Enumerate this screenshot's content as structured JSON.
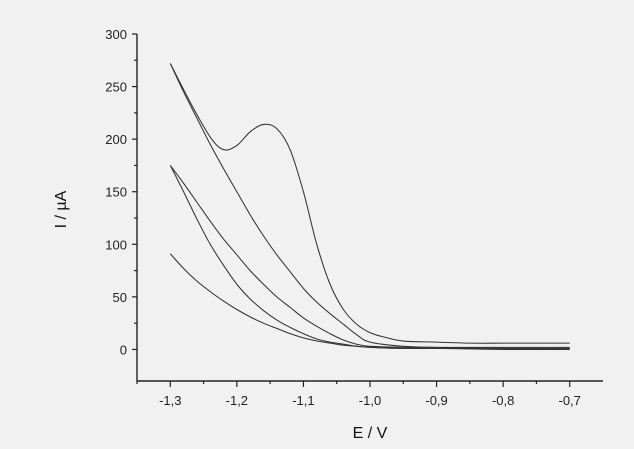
{
  "chart_data": {
    "type": "line",
    "xlabel": "E / V",
    "ylabel": "I / µA",
    "xlim": [
      -1.35,
      -0.65
    ],
    "ylim": [
      -30,
      300
    ],
    "x_ticks": [
      -1.3,
      -1.2,
      -1.1,
      -1.0,
      -0.9,
      -0.8,
      -0.7
    ],
    "x_tick_labels": [
      "-1,3",
      "-1,2",
      "-1,1",
      "-1,0",
      "-0,9",
      "-0,8",
      "-0,7"
    ],
    "y_ticks": [
      0,
      50,
      100,
      150,
      200,
      250,
      300
    ],
    "y_tick_labels": [
      "0",
      "50",
      "100",
      "150",
      "200",
      "250",
      "300"
    ],
    "grid": false,
    "series": [
      {
        "x": [
          -1.3,
          -1.27,
          -1.24,
          -1.22,
          -1.2,
          -1.18,
          -1.16,
          -1.14,
          -1.12,
          -1.1,
          -1.08,
          -1.06,
          -1.04,
          -1.02,
          -1.0,
          -0.98,
          -0.95,
          -0.9,
          -0.85,
          -0.8,
          -0.75,
          -0.7
        ],
        "y": [
          272,
          235,
          202,
          190,
          194,
          207,
          214,
          210,
          190,
          150,
          100,
          62,
          38,
          24,
          16,
          12,
          8,
          7,
          6,
          6,
          6,
          6
        ]
      },
      {
        "x": [
          -1.3,
          -1.28,
          -1.26,
          -1.24,
          -1.22,
          -1.2,
          -1.18,
          -1.16,
          -1.14,
          -1.12,
          -1.1,
          -1.08,
          -1.06,
          -1.04,
          -1.02,
          -1.0,
          -0.95,
          -0.9,
          -0.8,
          -0.7
        ],
        "y": [
          272,
          245,
          220,
          195,
          172,
          150,
          128,
          108,
          90,
          74,
          58,
          45,
          34,
          24,
          14,
          7,
          3,
          2,
          1,
          1
        ]
      },
      {
        "x": [
          -1.3,
          -1.28,
          -1.26,
          -1.24,
          -1.22,
          -1.2,
          -1.18,
          -1.16,
          -1.14,
          -1.12,
          -1.1,
          -1.08,
          -1.06,
          -1.04,
          -1.02,
          -1.0,
          -0.95,
          -0.9,
          -0.8,
          -0.7
        ],
        "y": [
          175,
          158,
          140,
          122,
          105,
          90,
          75,
          62,
          50,
          40,
          30,
          22,
          15,
          9,
          5,
          3,
          2,
          2,
          2,
          2
        ]
      },
      {
        "x": [
          -1.3,
          -1.28,
          -1.26,
          -1.24,
          -1.22,
          -1.2,
          -1.18,
          -1.16,
          -1.14,
          -1.12,
          -1.1,
          -1.08,
          -1.06,
          -1.04,
          -1.02,
          -1.0,
          -0.95,
          -0.9,
          -0.8,
          -0.7
        ],
        "y": [
          175,
          150,
          124,
          100,
          80,
          62,
          48,
          37,
          28,
          21,
          15,
          10,
          7,
          5,
          3,
          2,
          1,
          1,
          1,
          1
        ]
      },
      {
        "x": [
          -1.3,
          -1.28,
          -1.26,
          -1.24,
          -1.22,
          -1.2,
          -1.18,
          -1.16,
          -1.14,
          -1.12,
          -1.1,
          -1.08,
          -1.06,
          -1.04,
          -1.02,
          -1.0,
          -0.95,
          -0.9,
          -0.8,
          -0.7
        ],
        "y": [
          91,
          77,
          65,
          55,
          46,
          38,
          31,
          25,
          20,
          15,
          11,
          8,
          6,
          4,
          3,
          2,
          1,
          1,
          0,
          0
        ]
      }
    ]
  }
}
